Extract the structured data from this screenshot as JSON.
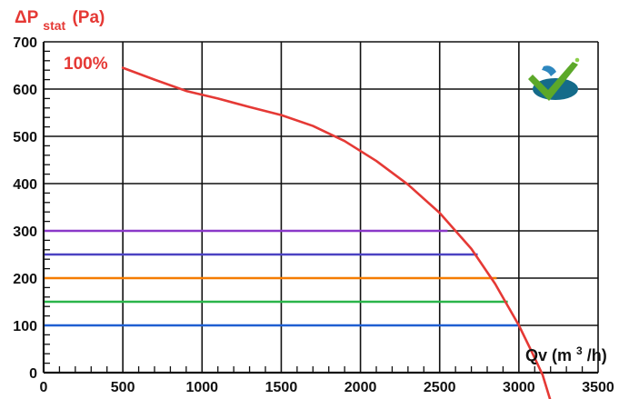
{
  "chart_data": {
    "type": "line",
    "x_ticks": [
      0,
      500,
      1000,
      1500,
      2000,
      2500,
      3000,
      3500
    ],
    "y_ticks": [
      0,
      100,
      200,
      300,
      400,
      500,
      600,
      700
    ],
    "xlim": [
      0,
      3500
    ],
    "ylim": [
      0,
      700
    ],
    "grid": true,
    "ylabel": {
      "symbol": "ΔP",
      "subscript": "stat",
      "unit": "(Pa)"
    },
    "xlabel": {
      "base": "Qv (m",
      "superscript": "3",
      "suffix": "/h)"
    },
    "series": [
      {
        "name": "100%",
        "color": "#e53935",
        "points": [
          [
            500,
            645
          ],
          [
            700,
            620
          ],
          [
            900,
            596
          ],
          [
            1100,
            580
          ],
          [
            1300,
            562
          ],
          [
            1500,
            545
          ],
          [
            1700,
            522
          ],
          [
            1900,
            490
          ],
          [
            2100,
            448
          ],
          [
            2300,
            398
          ],
          [
            2500,
            338
          ],
          [
            2700,
            262
          ],
          [
            2850,
            188
          ],
          [
            3000,
            100
          ],
          [
            3080,
            45
          ],
          [
            3150,
            -5
          ],
          [
            3200,
            -60
          ]
        ]
      }
    ],
    "horizontal_lines": [
      {
        "y": 300,
        "x_end": 2550,
        "color": "#8a38c8"
      },
      {
        "y": 250,
        "x_end": 2740,
        "color": "#4b42c2"
      },
      {
        "y": 200,
        "x_end": 2860,
        "color": "#f57c00"
      },
      {
        "y": 150,
        "x_end": 2930,
        "color": "#2ab54a"
      },
      {
        "y": 100,
        "x_end": 3000,
        "color": "#1f5fd1"
      }
    ]
  },
  "logo": {
    "name": "check-logo-icon"
  }
}
